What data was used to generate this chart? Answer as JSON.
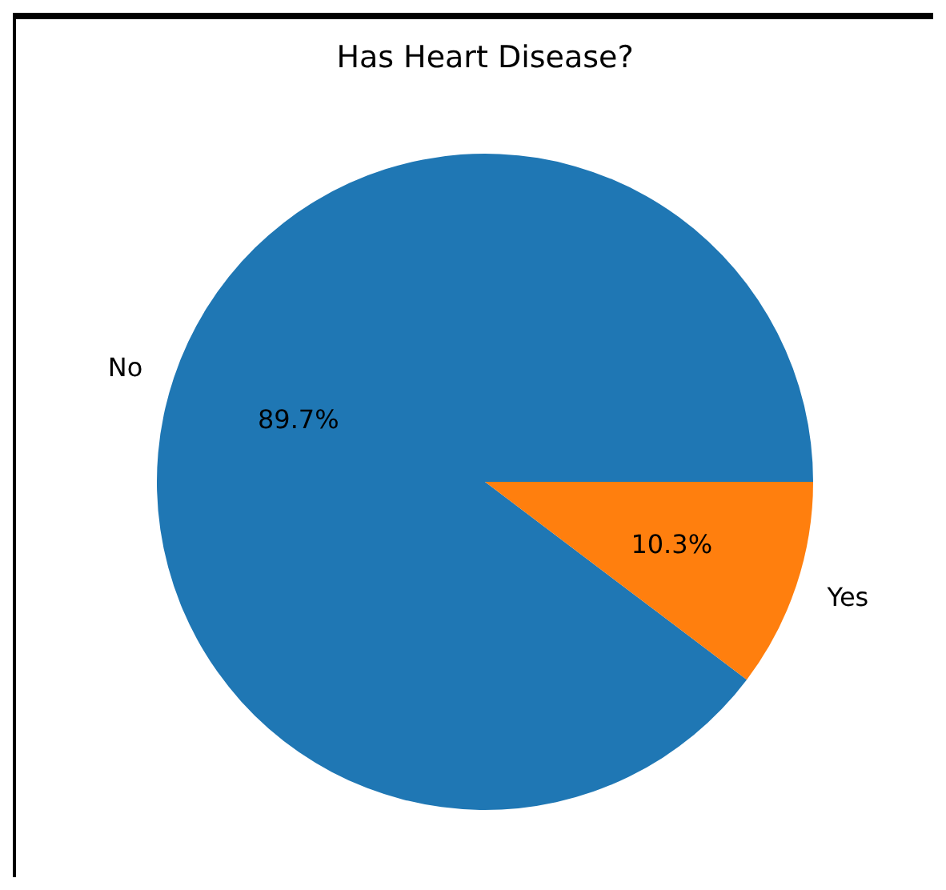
{
  "chart_data": {
    "type": "pie",
    "title": "Has Heart Disease?",
    "categories": [
      "No",
      "Yes"
    ],
    "values": [
      89.7,
      10.3
    ],
    "colors": [
      "#1f77b4",
      "#ff7f0e"
    ],
    "value_labels": [
      "89.7%",
      "10.3%"
    ]
  }
}
